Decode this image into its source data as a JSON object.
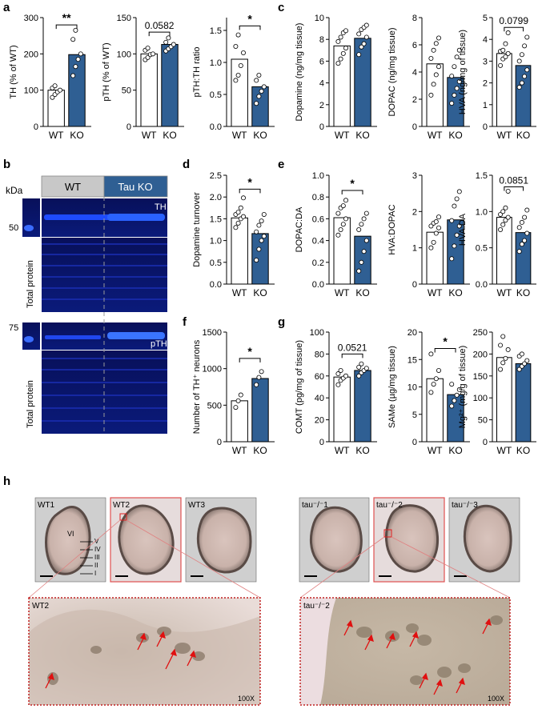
{
  "panel_labels": [
    "a",
    "b",
    "c",
    "d",
    "e",
    "f",
    "g",
    "h"
  ],
  "colors": {
    "wt": "#ffffff",
    "ko": "#2f5f93",
    "stroke": "#000000"
  },
  "categories": [
    "WT",
    "KO"
  ],
  "blot": {
    "kda_label": "kDa",
    "marker_50": "50",
    "marker_75": "75",
    "wt_header": "WT",
    "ko_header": "Tau KO",
    "th_label": "TH",
    "pth_label": "pTH",
    "total_protein": "Total protein",
    "header_colors": {
      "wt": "#c8c8c8",
      "ko": "#2f5f93"
    }
  },
  "histology": {
    "top_labels": [
      "WT1",
      "WT2",
      "WT3",
      "tau⁻/⁻1",
      "tau⁻/⁻2",
      "tau⁻/⁻3"
    ],
    "layers": [
      "VI",
      "V",
      "IV",
      "III",
      "II",
      "I"
    ],
    "zoom_labels": [
      "WT2",
      "tau⁻/⁻2"
    ],
    "magnification": "100X"
  },
  "chart_data": [
    {
      "id": "a1",
      "panel": "a",
      "type": "bar",
      "categories": [
        "WT",
        "KO"
      ],
      "values": [
        100,
        198
      ],
      "points": [
        [
          80,
          88,
          95,
          100,
          106,
          112
        ],
        [
          140,
          165,
          185,
          200,
          240,
          265
        ]
      ],
      "ylabel": "TH (% of WT)",
      "ylim": [
        0,
        300
      ],
      "yticks": [
        0,
        100,
        200,
        300
      ],
      "sig": "**",
      "sig_y": 280
    },
    {
      "id": "a2",
      "panel": "a",
      "type": "bar",
      "categories": [
        "WT",
        "KO"
      ],
      "values": [
        100,
        113
      ],
      "points": [
        [
          92,
          95,
          99,
          100,
          105,
          108
        ],
        [
          104,
          107,
          110,
          113,
          116,
          122
        ]
      ],
      "ylabel": "pTH (% of WT)",
      "ylim": [
        0,
        150
      ],
      "yticks": [
        0,
        50,
        100,
        150
      ],
      "sig": "0.0582",
      "sig_y": 130
    },
    {
      "id": "a3",
      "panel": "a",
      "type": "bar",
      "categories": [
        "WT",
        "KO"
      ],
      "values": [
        1.05,
        0.62
      ],
      "points": [
        [
          0.72,
          0.8,
          0.95,
          1.15,
          1.25,
          1.43
        ],
        [
          0.36,
          0.47,
          0.55,
          0.62,
          0.72,
          0.8
        ]
      ],
      "ylabel": "pTH:TH ratio",
      "ylim": [
        0,
        1.7
      ],
      "yticks": [
        0,
        0.5,
        1.0,
        1.5
      ],
      "tickfmt": 1,
      "sig": "*",
      "sig_y": 1.57
    },
    {
      "id": "c1",
      "panel": "c",
      "type": "bar",
      "categories": [
        "WT",
        "KO"
      ],
      "values": [
        7.4,
        8.1
      ],
      "points": [
        [
          5.8,
          6.2,
          6.7,
          7.2,
          7.8,
          8.2,
          8.6,
          8.8
        ],
        [
          6.6,
          7.3,
          7.6,
          8.2,
          8.5,
          8.9,
          9.1,
          9.3
        ]
      ],
      "ylabel": "Dopamine (ng/mg tissue)",
      "ylim": [
        0,
        10
      ],
      "yticks": [
        0,
        2,
        4,
        6,
        8,
        10
      ]
    },
    {
      "id": "c2",
      "panel": "c",
      "type": "bar",
      "categories": [
        "WT",
        "KO"
      ],
      "values": [
        4.6,
        3.6
      ],
      "points": [
        [
          2.3,
          3.1,
          3.8,
          4.4,
          5.0,
          5.6,
          6.1,
          6.5
        ],
        [
          1.7,
          2.3,
          2.8,
          3.3,
          3.7,
          4.4,
          5.1,
          5.6
        ]
      ],
      "ylabel": "DOPAC (ng/mg tissue)",
      "ylim": [
        0,
        8
      ],
      "yticks": [
        0,
        2,
        4,
        6,
        8
      ]
    },
    {
      "id": "c3",
      "panel": "c",
      "type": "bar",
      "categories": [
        "WT",
        "KO"
      ],
      "values": [
        3.35,
        2.8
      ],
      "points": [
        [
          2.8,
          3.1,
          3.2,
          3.35,
          3.45,
          3.5,
          3.8,
          4.3
        ],
        [
          1.8,
          2.0,
          2.3,
          2.6,
          3.0,
          3.3,
          3.7,
          4.1
        ]
      ],
      "ylabel": "HVA (ng/mg of tissue)",
      "ylim": [
        0,
        5
      ],
      "yticks": [
        0,
        1,
        2,
        3,
        4,
        5
      ],
      "sig": "0.0799",
      "sig_y": 4.55
    },
    {
      "id": "d",
      "panel": "d",
      "type": "bar",
      "categories": [
        "WT",
        "KO"
      ],
      "values": [
        1.52,
        1.16
      ],
      "points": [
        [
          1.3,
          1.4,
          1.5,
          1.55,
          1.6,
          1.65,
          1.75,
          1.98
        ],
        [
          0.55,
          0.8,
          1.0,
          1.1,
          1.2,
          1.35,
          1.45,
          1.6
        ]
      ],
      "ylabel": "Dopamine turnover",
      "ylim": [
        0,
        2.5
      ],
      "yticks": [
        0,
        0.5,
        1.0,
        1.5,
        2.0,
        2.5
      ],
      "tickfmt": 1,
      "sig": "*",
      "sig_y": 2.18
    },
    {
      "id": "e1",
      "panel": "e",
      "type": "bar",
      "categories": [
        "WT",
        "KO"
      ],
      "values": [
        0.61,
        0.44
      ],
      "points": [
        [
          0.45,
          0.5,
          0.55,
          0.6,
          0.65,
          0.7,
          0.72,
          0.77
        ],
        [
          0.12,
          0.2,
          0.3,
          0.4,
          0.5,
          0.55,
          0.6,
          0.65
        ]
      ],
      "ylabel": "DOPAC:DA",
      "ylim": [
        0,
        1.0
      ],
      "yticks": [
        0,
        0.2,
        0.4,
        0.6,
        0.8,
        1.0
      ],
      "tickfmt": 1,
      "sig": "*",
      "sig_y": 0.86
    },
    {
      "id": "e2",
      "panel": "e",
      "type": "bar",
      "categories": [
        "WT",
        "KO"
      ],
      "values": [
        1.43,
        1.77
      ],
      "points": [
        [
          1.0,
          1.15,
          1.4,
          1.55,
          1.6,
          1.68,
          1.72,
          1.85
        ],
        [
          0.7,
          1.05,
          1.35,
          1.6,
          1.75,
          2.15,
          2.35,
          2.55
        ]
      ],
      "ylabel": "HVA:DOPAC",
      "ylim": [
        0,
        3
      ],
      "yticks": [
        0,
        1,
        2,
        3
      ]
    },
    {
      "id": "e3",
      "panel": "e",
      "type": "bar",
      "categories": [
        "WT",
        "KO"
      ],
      "values": [
        0.92,
        0.71
      ],
      "points": [
        [
          0.75,
          0.82,
          0.88,
          0.92,
          0.96,
          1.0,
          1.05,
          1.28
        ],
        [
          0.45,
          0.55,
          0.6,
          0.7,
          0.78,
          0.85,
          0.92,
          1.02
        ]
      ],
      "ylabel": "HVA:DA",
      "ylim": [
        0,
        1.5
      ],
      "yticks": [
        0,
        0.5,
        1.0,
        1.5
      ],
      "tickfmt": 1,
      "sig": "0.0851",
      "sig_y": 1.34
    },
    {
      "id": "f",
      "panel": "f",
      "type": "bar",
      "categories": [
        "WT",
        "KO"
      ],
      "values": [
        560,
        865
      ],
      "points": [
        [
          470,
          560,
          640
        ],
        [
          780,
          880,
          960
        ]
      ],
      "ylabel": "Number of TH⁺ neurons",
      "ylim": [
        0,
        1500
      ],
      "yticks": [
        0,
        500,
        1000,
        1500
      ],
      "sig": "*",
      "sig_y": 1140
    },
    {
      "id": "g1",
      "panel": "g",
      "type": "bar",
      "categories": [
        "WT",
        "KO"
      ],
      "values": [
        59,
        65
      ],
      "points": [
        [
          52,
          56,
          58,
          60,
          62,
          65
        ],
        [
          60,
          63,
          65,
          67,
          68,
          71
        ]
      ],
      "ylabel": "COMT (pg/mg of tissue)",
      "ylim": [
        0,
        100
      ],
      "yticks": [
        0,
        20,
        40,
        60,
        80,
        100
      ],
      "sig": "0.0521",
      "sig_y": 80
    },
    {
      "id": "g2",
      "panel": "g",
      "type": "bar",
      "categories": [
        "WT",
        "KO"
      ],
      "values": [
        11.5,
        8.6
      ],
      "points": [
        [
          9.0,
          10.5,
          11.5,
          13.0,
          16.0
        ],
        [
          6.5,
          7.5,
          8.5,
          9.5,
          10.5
        ]
      ],
      "ylabel": "SAMe (µg/mg tissue)",
      "ylim": [
        0,
        20
      ],
      "yticks": [
        0,
        5,
        10,
        15,
        20
      ],
      "sig": "*",
      "sig_y": 17
    },
    {
      "id": "g3",
      "panel": "g",
      "type": "bar",
      "categories": [
        "WT",
        "KO"
      ],
      "values": [
        192,
        178
      ],
      "points": [
        [
          165,
          180,
          190,
          210,
          220,
          240
        ],
        [
          165,
          172,
          178,
          185,
          195,
          200
        ]
      ],
      "ylabel": "Mg²⁺ (mg/g of tissue)",
      "ylim": [
        0,
        250
      ],
      "yticks": [
        0,
        50,
        100,
        150,
        200,
        250
      ]
    }
  ]
}
